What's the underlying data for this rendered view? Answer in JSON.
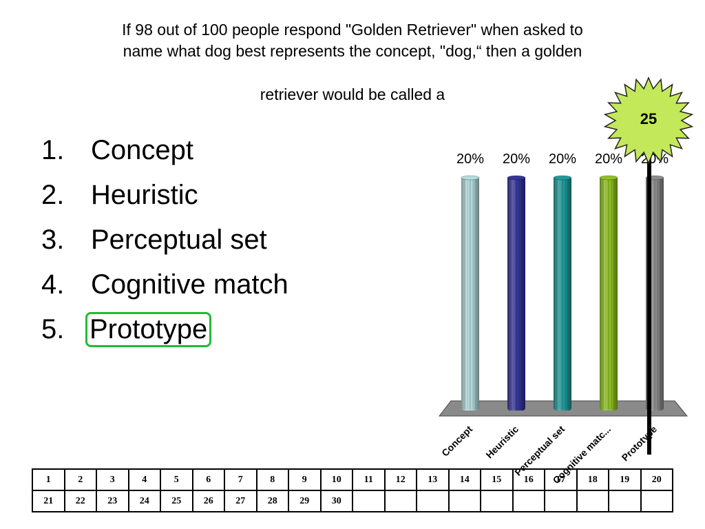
{
  "question": {
    "line1": "If 98 out of 100 people respond \"Golden Retriever\" when asked to",
    "line2": "name what dog best represents the concept, \"dog,“ then a golden",
    "line3": "retriever would be called a"
  },
  "answers": [
    {
      "number": "1.",
      "text": "Concept"
    },
    {
      "number": "2.",
      "text": "Heuristic"
    },
    {
      "number": "3.",
      "text": "Perceptual set"
    },
    {
      "number": "4.",
      "text": "Cognitive match"
    },
    {
      "number": "5.",
      "text": "Prototype"
    }
  ],
  "correct_answer_index": 4,
  "timer": {
    "value": "25",
    "color": "#c3e85a"
  },
  "chart_data": {
    "type": "bar",
    "categories": [
      "Concept",
      "Heuristic",
      "Perceptual set",
      "Cognitive matc...",
      "Prototype"
    ],
    "values": [
      20,
      20,
      20,
      20,
      20
    ],
    "data_labels": [
      "20%",
      "20%",
      "20%",
      "20%",
      "20%"
    ],
    "colors": [
      "#b5dde0",
      "#34349a",
      "#1e9a9a",
      "#8fc31f",
      "#8c8c8c"
    ],
    "ylim": [
      0,
      20
    ],
    "title": "",
    "xlabel": "",
    "ylabel": "",
    "grid": false,
    "legend": "none",
    "style": "3d-cylinder"
  },
  "response_grid": {
    "row1": [
      "1",
      "2",
      "3",
      "4",
      "5",
      "6",
      "7",
      "8",
      "9",
      "10",
      "11",
      "12",
      "13",
      "14",
      "15",
      "16",
      "17",
      "18",
      "19",
      "20"
    ],
    "row2": [
      "21",
      "22",
      "23",
      "24",
      "25",
      "26",
      "27",
      "28",
      "29",
      "30",
      "",
      "",
      "",
      "",
      "",
      "",
      "",
      "",
      "",
      ""
    ]
  }
}
